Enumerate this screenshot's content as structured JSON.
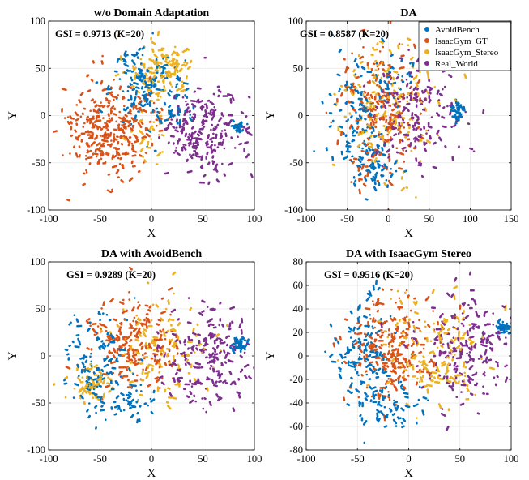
{
  "chart_data": [
    {
      "type": "scatter",
      "title": "w/o Domain Adaptation",
      "xlabel": "X",
      "ylabel": "Y",
      "xlim": [
        -100,
        100
      ],
      "ylim": [
        -100,
        100
      ],
      "xticks": [
        -100,
        -50,
        0,
        50,
        100
      ],
      "yticks": [
        -100,
        -50,
        0,
        50,
        100
      ],
      "grid": true,
      "annotation": "GSI = 0.9713 (K=20)",
      "series": [
        {
          "name": "AvoidBench",
          "clusters": [
            [
              -5,
              30,
              18,
              22,
              380
            ],
            [
              -22,
              52,
              8,
              10,
              60
            ],
            [
              25,
              8,
              12,
              10,
              60
            ],
            [
              85,
              -12,
              3,
              3,
              70
            ]
          ]
        },
        {
          "name": "IsaacGym_GT",
          "clusters": [
            [
              -45,
              -15,
              20,
              26,
              780
            ],
            [
              -5,
              0,
              10,
              14,
              80
            ]
          ]
        },
        {
          "name": "IsaacGym_Stereo",
          "clusters": [
            [
              12,
              48,
              14,
              14,
              380
            ],
            [
              -5,
              -25,
              10,
              12,
              80
            ]
          ]
        },
        {
          "name": "Real_World",
          "clusters": [
            [
              52,
              -18,
              20,
              22,
              620
            ]
          ]
        }
      ]
    },
    {
      "type": "scatter",
      "title": "DA",
      "xlabel": "X",
      "ylabel": "Y",
      "xlim": [
        -100,
        150
      ],
      "ylim": [
        -100,
        100
      ],
      "xticks": [
        -100,
        -50,
        0,
        50,
        100,
        150
      ],
      "yticks": [
        -100,
        -50,
        0,
        50,
        100
      ],
      "grid": true,
      "annotation": "GSI = 0.8587 (K=20)",
      "legend": {
        "placement": "top-right",
        "entries": [
          "AvoidBench",
          "IsaacGym_GT",
          "IsaacGym_Stereo",
          "Real_World"
        ]
      },
      "series": [
        {
          "name": "AvoidBench",
          "clusters": [
            [
              -35,
              -5,
              22,
              32,
              380
            ],
            [
              -15,
              -55,
              12,
              12,
              140
            ],
            [
              85,
              5,
              4,
              5,
              120
            ],
            [
              10,
              40,
              16,
              14,
              80
            ]
          ]
        },
        {
          "name": "IsaacGym_GT",
          "clusters": [
            [
              -15,
              5,
              22,
              36,
              600
            ]
          ]
        },
        {
          "name": "IsaacGym_Stereo",
          "clusters": [
            [
              0,
              10,
              32,
              36,
              480
            ]
          ]
        },
        {
          "name": "Real_World",
          "clusters": [
            [
              35,
              0,
              30,
              30,
              500
            ]
          ]
        }
      ]
    },
    {
      "type": "scatter",
      "title": "DA with AvoidBench",
      "xlabel": "X",
      "ylabel": "Y",
      "xlim": [
        -100,
        100
      ],
      "ylim": [
        -100,
        100
      ],
      "xticks": [
        -100,
        -50,
        0,
        50,
        100
      ],
      "yticks": [
        -100,
        -50,
        0,
        50,
        100
      ],
      "grid": true,
      "annotation": "GSI = 0.9289 (K=20)",
      "series": [
        {
          "name": "AvoidBench",
          "clusters": [
            [
              -50,
              -10,
              18,
              28,
              360
            ],
            [
              -25,
              -50,
              14,
              10,
              120
            ],
            [
              85,
              12,
              4,
              4,
              120
            ]
          ]
        },
        {
          "name": "IsaacGym_GT",
          "clusters": [
            [
              -20,
              10,
              22,
              26,
              560
            ]
          ]
        },
        {
          "name": "IsaacGym_Stereo",
          "clusters": [
            [
              -60,
              -30,
              10,
              8,
              180
            ],
            [
              10,
              10,
              24,
              28,
              380
            ]
          ]
        },
        {
          "name": "Real_World",
          "clusters": [
            [
              55,
              0,
              22,
              26,
              600
            ]
          ]
        }
      ]
    },
    {
      "type": "scatter",
      "title": "DA with IsaacGym Stereo",
      "xlabel": "X",
      "ylabel": "Y",
      "xlim": [
        -100,
        100
      ],
      "ylim": [
        -80,
        80
      ],
      "xticks": [
        -100,
        -50,
        0,
        50,
        100
      ],
      "yticks": [
        -80,
        -60,
        -40,
        -20,
        0,
        20,
        40,
        60,
        80
      ],
      "grid": true,
      "annotation": "GSI = 0.9516 (K=20)",
      "series": [
        {
          "name": "AvoidBench",
          "clusters": [
            [
              -45,
              0,
              16,
              22,
              380
            ],
            [
              -15,
              -45,
              14,
              12,
              160
            ],
            [
              92,
              25,
              3,
              3,
              80
            ]
          ]
        },
        {
          "name": "IsaacGym_GT",
          "clusters": [
            [
              -20,
              5,
              22,
              22,
              600
            ]
          ]
        },
        {
          "name": "IsaacGym_Stereo",
          "clusters": [
            [
              20,
              5,
              28,
              24,
              480
            ]
          ]
        },
        {
          "name": "Real_World",
          "clusters": [
            [
              55,
              5,
              22,
              24,
              520
            ]
          ]
        }
      ]
    }
  ],
  "colors": {
    "AvoidBench": "#0072BD",
    "IsaacGym_GT": "#D95319",
    "IsaacGym_Stereo": "#EDB120",
    "Real_World": "#7E2F8E"
  }
}
